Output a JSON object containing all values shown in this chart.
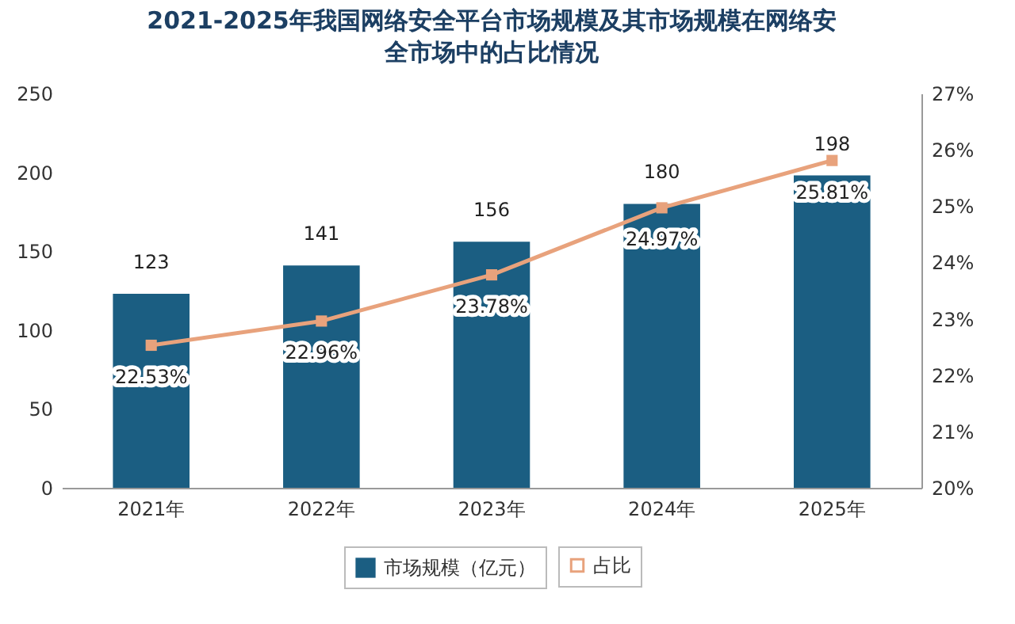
{
  "chart_data": {
    "type": "bar",
    "title": "2021-2025年我国网络安全平台市场规模及其市场规模在网络安全市场中的占比情况",
    "categories": [
      "2021年",
      "2022年",
      "2023年",
      "2024年",
      "2025年"
    ],
    "series": [
      {
        "name": "市场规模（亿元）",
        "color": "#1b5e82",
        "values": [
          123,
          141,
          156,
          180,
          198
        ],
        "value_labels": [
          "123",
          "141",
          "156",
          "180",
          "198"
        ]
      },
      {
        "name": "占比",
        "type": "line",
        "axis": "y2",
        "color": "#e8a27c",
        "values": [
          22.53,
          22.96,
          23.78,
          24.97,
          25.81
        ],
        "value_labels": [
          "22.53%",
          "22.96%",
          "23.78%",
          "24.97%",
          "25.81%"
        ]
      }
    ],
    "ylim": [
      0,
      250
    ],
    "yticks": [
      0,
      50,
      100,
      150,
      200,
      250
    ],
    "y2lim": [
      20,
      27
    ],
    "y2ticks": [
      {
        "value": 20,
        "label": "20%"
      },
      {
        "value": 21,
        "label": "21%"
      },
      {
        "value": 22,
        "label": "22%"
      },
      {
        "value": 23,
        "label": "23%"
      },
      {
        "value": 24,
        "label": "24%"
      },
      {
        "value": 25,
        "label": "25%"
      },
      {
        "value": 26,
        "label": "26%"
      },
      {
        "value": 27,
        "label": "27%"
      }
    ],
    "legend": "bottom",
    "marker": "square",
    "line_style": "solid",
    "grid": false
  }
}
